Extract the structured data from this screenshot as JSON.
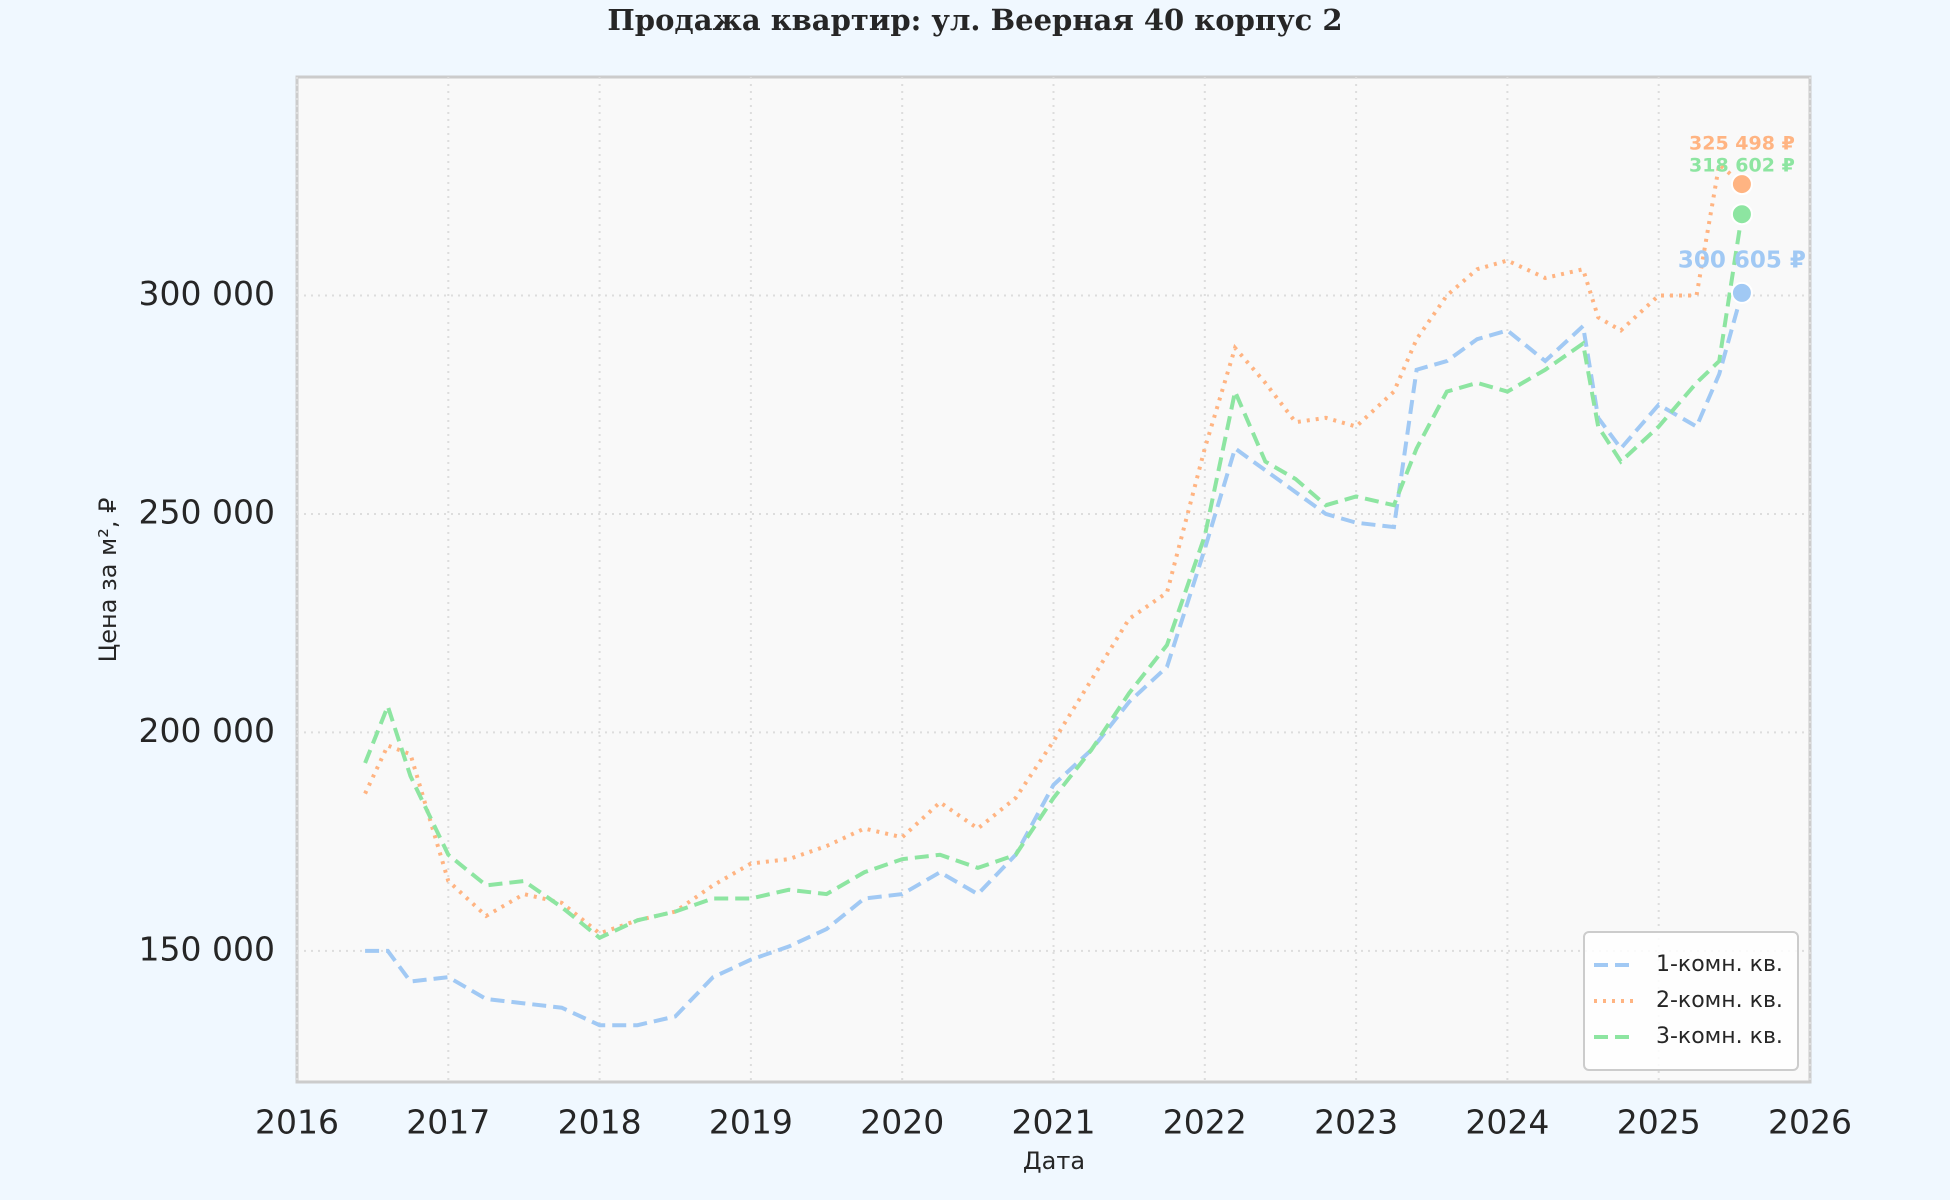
{
  "chart_data": {
    "type": "line",
    "title": "Продажа квартир: ул. Веерная 40 корпус 2",
    "x_label": "Дата",
    "y_label": "Цена за м², ₽",
    "x": [
      2016.45,
      2016.6,
      2016.75,
      2017.0,
      2017.25,
      2017.5,
      2017.75,
      2018.0,
      2018.25,
      2018.5,
      2018.75,
      2019.0,
      2019.25,
      2019.5,
      2019.75,
      2020.0,
      2020.25,
      2020.5,
      2020.75,
      2021.0,
      2021.25,
      2021.5,
      2021.75,
      2022.0,
      2022.2,
      2022.4,
      2022.6,
      2022.8,
      2023.0,
      2023.25,
      2023.4,
      2023.6,
      2023.8,
      2024.0,
      2024.25,
      2024.5,
      2024.6,
      2024.75,
      2025.0,
      2025.25,
      2025.4,
      2025.55
    ],
    "series": [
      {
        "name": "1-комн. кв.",
        "color": "#a1c9f4",
        "linestyle": "dashed",
        "values": [
          150000,
          150000,
          143000,
          144000,
          139000,
          138000,
          137000,
          133000,
          133000,
          135000,
          144000,
          148000,
          151000,
          155000,
          162000,
          163000,
          168000,
          163000,
          172000,
          188000,
          196000,
          207000,
          215000,
          242000,
          265000,
          260000,
          255000,
          250000,
          248000,
          247000,
          283000,
          285000,
          290000,
          292000,
          285000,
          293000,
          272000,
          265000,
          275000,
          270000,
          282000,
          300605
        ],
        "value_labels": [
          null,
          null,
          null,
          null,
          null,
          null,
          null,
          null,
          null,
          null,
          null,
          null,
          null,
          null,
          null,
          null,
          null,
          null,
          null,
          null,
          null,
          null,
          null,
          null,
          null,
          null,
          null,
          null,
          null,
          null,
          null,
          null,
          null,
          null,
          null,
          null,
          null,
          null,
          null,
          null,
          null,
          "300 605 ₽"
        ]
      },
      {
        "name": "2-комн. кв.",
        "color": "#ffb482",
        "linestyle": "dotted",
        "values": [
          186000,
          197000,
          195000,
          166000,
          158000,
          163000,
          161000,
          154000,
          157000,
          159000,
          165000,
          170000,
          171000,
          174000,
          178000,
          176000,
          184000,
          178000,
          185000,
          198000,
          212000,
          226000,
          232000,
          265000,
          288000,
          280000,
          271000,
          272000,
          270000,
          278000,
          290000,
          300000,
          306000,
          308000,
          304000,
          306000,
          295000,
          292000,
          300000,
          300000,
          330000,
          325498
        ],
        "value_labels": [
          null,
          null,
          null,
          null,
          null,
          null,
          null,
          null,
          null,
          null,
          null,
          null,
          null,
          null,
          null,
          null,
          null,
          null,
          null,
          null,
          null,
          null,
          null,
          null,
          null,
          null,
          null,
          null,
          null,
          null,
          null,
          null,
          null,
          null,
          null,
          null,
          null,
          null,
          null,
          null,
          null,
          "325 498 ₽"
        ]
      },
      {
        "name": "3-комн. кв.",
        "color": "#8de5a1",
        "linestyle": "dashed",
        "values": [
          193000,
          206000,
          190000,
          172000,
          165000,
          166000,
          160000,
          153000,
          157000,
          159000,
          162000,
          162000,
          164000,
          163000,
          168000,
          171000,
          172000,
          169000,
          172000,
          185000,
          196000,
          209000,
          220000,
          245000,
          278000,
          262000,
          258000,
          252000,
          254000,
          252000,
          265000,
          278000,
          280000,
          278000,
          283000,
          289000,
          270000,
          262000,
          270000,
          280000,
          285000,
          318602
        ],
        "value_labels": [
          null,
          null,
          null,
          null,
          null,
          null,
          null,
          null,
          null,
          null,
          null,
          null,
          null,
          null,
          null,
          null,
          null,
          null,
          null,
          null,
          null,
          null,
          null,
          null,
          null,
          null,
          null,
          null,
          null,
          null,
          null,
          null,
          null,
          null,
          null,
          null,
          null,
          null,
          null,
          null,
          null,
          "318 602 ₽"
        ]
      }
    ],
    "xlim": [
      2016,
      2026
    ],
    "xticks": [
      2016,
      2017,
      2018,
      2019,
      2020,
      2021,
      2022,
      2023,
      2024,
      2025,
      2026
    ],
    "ylim": [
      120000,
      350000
    ],
    "yticks": [
      {
        "value": 150000,
        "label": "150 000"
      },
      {
        "value": 200000,
        "label": "200 000"
      },
      {
        "value": 250000,
        "label": "250 000"
      },
      {
        "value": 300000,
        "label": "300 000"
      }
    ],
    "grid": true,
    "legend": "lower right"
  }
}
